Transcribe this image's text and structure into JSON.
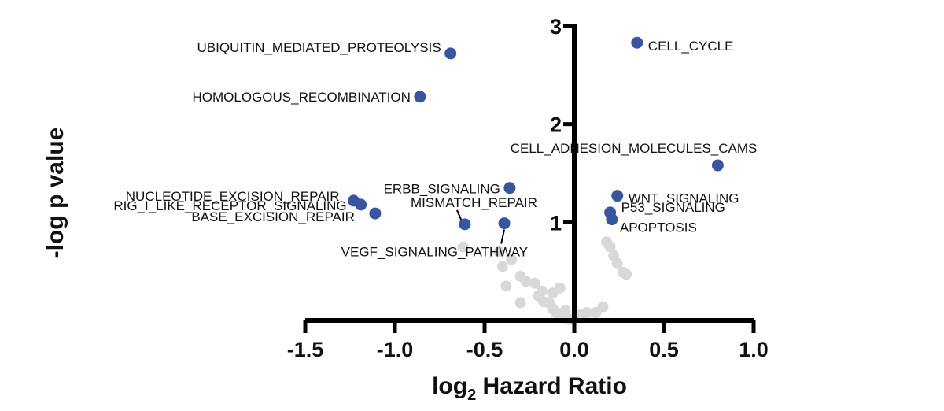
{
  "chart_data": {
    "type": "scatter",
    "title": "",
    "xlabel": {
      "main": "log",
      "sub": "2",
      "rest": " Hazard Ratio"
    },
    "ylabel": "-log p value",
    "xlim": [
      -1.5,
      1.0
    ],
    "ylim": [
      0,
      3
    ],
    "xticks": [
      {
        "value": -1.5,
        "label": "-1.5"
      },
      {
        "value": -1.0,
        "label": "-1.0"
      },
      {
        "value": -0.5,
        "label": "-0.5"
      },
      {
        "value": 0.0,
        "label": "0.0"
      },
      {
        "value": 0.5,
        "label": "0.5"
      },
      {
        "value": 1.0,
        "label": "1.0"
      }
    ],
    "yticks": [
      {
        "value": 1,
        "label": "1"
      },
      {
        "value": 2,
        "label": "2"
      },
      {
        "value": 3,
        "label": "3"
      }
    ],
    "grid": false,
    "legend": "none",
    "colors": {
      "significant": "#3a55a0",
      "nonsignificant": "#d8d8d6"
    },
    "labeled_points": [
      {
        "name": "UBIQUITIN_MEDIATED_PROTEOLYSIS",
        "x": -0.69,
        "y": 2.72
      },
      {
        "name": "HOMOLOGOUS_RECOMBINATION",
        "x": -0.86,
        "y": 2.28
      },
      {
        "name": "CELL_CYCLE",
        "x": 0.35,
        "y": 2.83
      },
      {
        "name": "CELL_ADHESION_MOLECULES_CAMS",
        "x": 0.8,
        "y": 1.58
      },
      {
        "name": "ERBB_SIGNALING",
        "x": -0.36,
        "y": 1.35
      },
      {
        "name": "WNT_SIGNALING",
        "x": 0.24,
        "y": 1.27
      },
      {
        "name": "NUCLEOTIDE_EXCISION_REPAIR",
        "x": -1.23,
        "y": 1.22
      },
      {
        "name": "RIG_I_LIKE_RECEPTOR_SIGNALING",
        "x": -1.19,
        "y": 1.18
      },
      {
        "name": "BASE_EXCISION_REPAIR",
        "x": -1.11,
        "y": 1.09
      },
      {
        "name": "MISMATCH_REPAIR",
        "x": -0.61,
        "y": 0.98
      },
      {
        "name": "VEGF_SIGNALING_PATHWAY",
        "x": -0.39,
        "y": 0.99
      },
      {
        "name": "P53_SIGNALING",
        "x": 0.2,
        "y": 1.1
      },
      {
        "name": "APOPTOSIS",
        "x": 0.21,
        "y": 1.03
      }
    ],
    "background_points": [
      {
        "x": -0.62,
        "y": 0.75
      },
      {
        "x": -0.42,
        "y": 0.7
      },
      {
        "x": -0.35,
        "y": 0.62
      },
      {
        "x": -0.4,
        "y": 0.55
      },
      {
        "x": -0.38,
        "y": 0.35
      },
      {
        "x": -0.3,
        "y": 0.45
      },
      {
        "x": -0.27,
        "y": 0.4
      },
      {
        "x": -0.22,
        "y": 0.38
      },
      {
        "x": -0.3,
        "y": 0.18
      },
      {
        "x": -0.2,
        "y": 0.25
      },
      {
        "x": -0.17,
        "y": 0.19
      },
      {
        "x": -0.14,
        "y": 0.18
      },
      {
        "x": -0.12,
        "y": 0.12
      },
      {
        "x": -0.1,
        "y": 0.08
      },
      {
        "x": -0.08,
        "y": 0.05
      },
      {
        "x": -0.06,
        "y": 0.03
      },
      {
        "x": -0.04,
        "y": 0.02
      },
      {
        "x": -0.02,
        "y": 0.01
      },
      {
        "x": 0.0,
        "y": 0.02
      },
      {
        "x": 0.02,
        "y": 0.04
      },
      {
        "x": 0.04,
        "y": 0.06
      },
      {
        "x": 0.07,
        "y": 0.08
      },
      {
        "x": 0.12,
        "y": 0.08
      },
      {
        "x": -0.08,
        "y": 0.33
      },
      {
        "x": -0.12,
        "y": 0.28
      },
      {
        "x": 0.16,
        "y": 0.14
      },
      {
        "x": 0.18,
        "y": 0.8
      },
      {
        "x": 0.2,
        "y": 0.75
      },
      {
        "x": 0.22,
        "y": 0.66
      },
      {
        "x": 0.24,
        "y": 0.58
      },
      {
        "x": 0.27,
        "y": 0.49
      },
      {
        "x": 0.29,
        "y": 0.47
      },
      {
        "x": -0.18,
        "y": 0.3
      },
      {
        "x": -0.05,
        "y": 0.1
      }
    ]
  }
}
